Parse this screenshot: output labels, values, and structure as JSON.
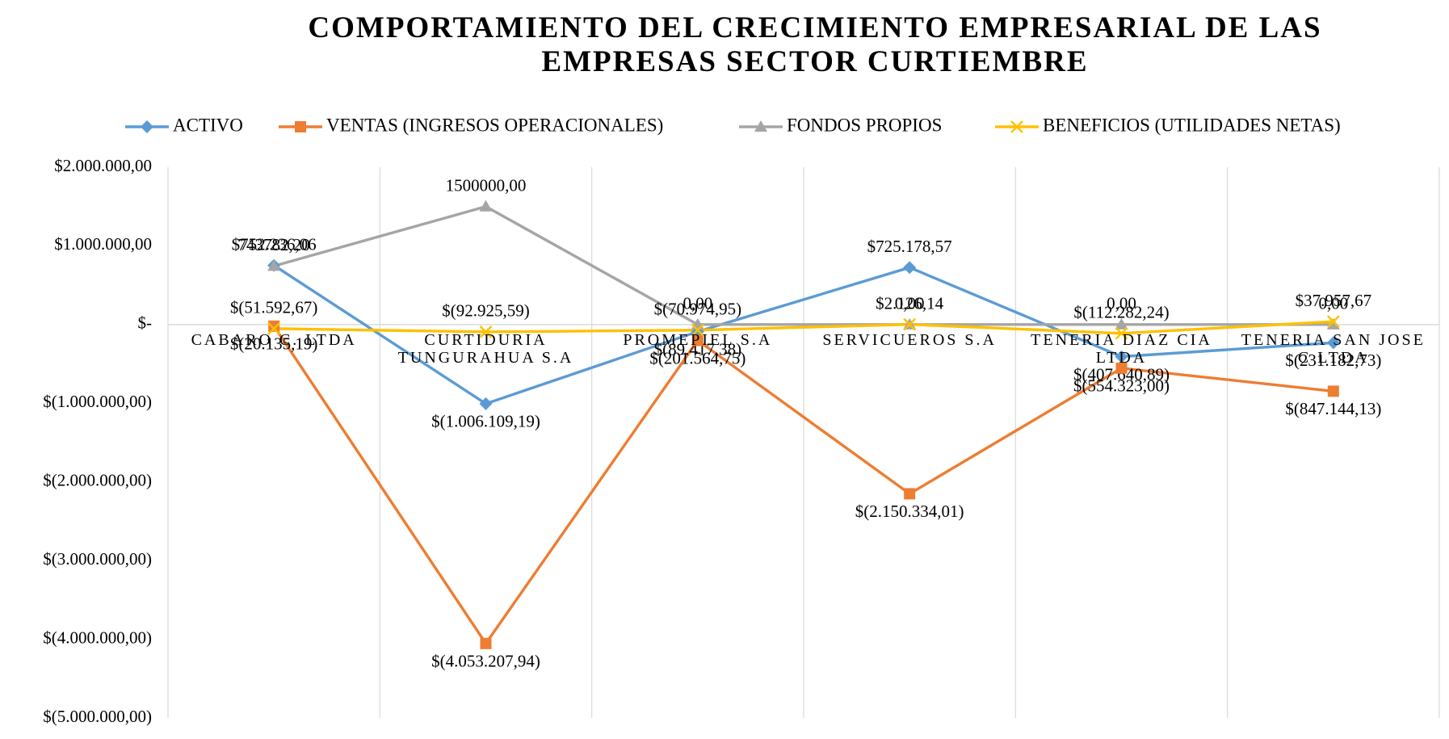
{
  "chart_data": {
    "type": "line",
    "title": "COMPORTAMIENTO DEL CRECIMIENTO EMPRESARIAL DE LAS EMPRESAS SECTOR CURTIEMBRE",
    "categories": [
      "CABARO C. LTDA",
      "CURTIDURIA TUNGURAHUA S.A",
      "PROMEPIEL S.A",
      "SERVICUEROS S.A",
      "TENERIA DIAZ CIA LTDA",
      "TENERIA SAN JOSE C LTDA"
    ],
    "series": [
      {
        "name": "ACTIVO",
        "color": "#5b9bd5",
        "marker": "diamond",
        "values": [
          752236.06,
          -1006109.19,
          -89417.38,
          725178.57,
          -407640.89,
          -231182.73
        ],
        "value_labels": [
          "$752.236,06",
          "$(1.006.109,19)",
          "$(89.417,38)",
          "$725.178,57",
          "$(407.640,89)",
          "$(231.182,73)"
        ]
      },
      {
        "name": "VENTAS (INGRESOS OPERACIONALES)",
        "color": "#ed7d31",
        "marker": "square",
        "values": [
          -20135.19,
          -4053207.94,
          -201564.75,
          -2150334.01,
          -554323.0,
          -847144.13
        ],
        "value_labels": [
          "$(20.135,19)",
          "$(4.053.207,94)",
          "$(201.564,75)",
          "$(2.150.334,01)",
          "$(554.323,00)",
          "$(847.144,13)"
        ]
      },
      {
        "name": "FONDOS PROPIOS",
        "color": "#a5a5a5",
        "marker": "triangle",
        "values": [
          743782.2,
          1500000.0,
          0,
          0,
          0,
          0
        ],
        "value_labels": [
          "743782,20",
          "1500000,00",
          "0,00",
          "0,00",
          "0,00",
          "0,00"
        ]
      },
      {
        "name": "BENEFICIOS (UTILIDADES NETAS)",
        "color": "#ffc000",
        "marker": "x",
        "values": [
          -51592.67,
          -92925.59,
          -70974.95,
          2126.14,
          -112282.24,
          37957.67
        ],
        "value_labels": [
          "$(51.592,67)",
          "$(92.925,59)",
          "$(70.974,95)",
          "$2.126,14",
          "$(112.282,24)",
          "$37.957,67"
        ]
      }
    ],
    "ylim": [
      -5000000,
      2000000
    ],
    "yticks": [
      {
        "value": 2000000,
        "label": "$2.000.000,00"
      },
      {
        "value": 1000000,
        "label": "$1.000.000,00"
      },
      {
        "value": 0,
        "label": "$-"
      },
      {
        "value": -1000000,
        "label": "$(1.000.000,00)"
      },
      {
        "value": -2000000,
        "label": "$(2.000.000,00)"
      },
      {
        "value": -3000000,
        "label": "$(3.000.000,00)"
      },
      {
        "value": -4000000,
        "label": "$(4.000.000,00)"
      },
      {
        "value": -5000000,
        "label": "$(5.000.000,00)"
      }
    ],
    "legend": "top"
  }
}
